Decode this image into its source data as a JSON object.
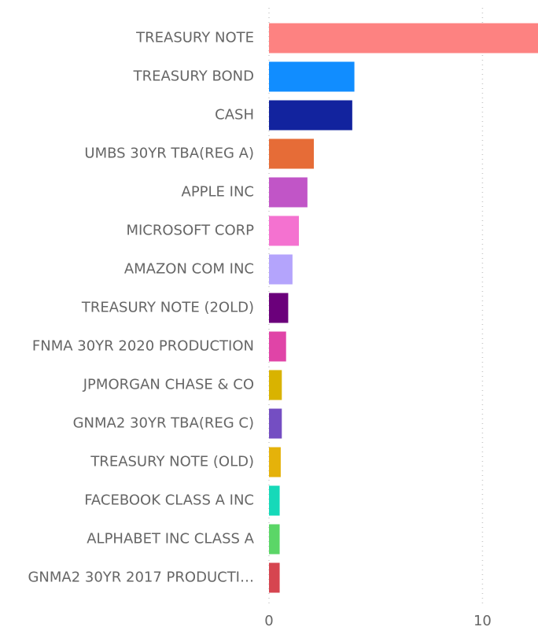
{
  "chart_data": {
    "type": "barh",
    "categories": [
      "TREASURY NOTE",
      "TREASURY BOND",
      "CASH",
      "UMBS 30YR TBA(REG A)",
      "APPLE INC",
      "MICROSOFT CORP",
      "AMAZON COM INC",
      "TREASURY NOTE (2OLD)",
      "FNMA 30YR 2020 PRODUCTION",
      "JPMORGAN CHASE & CO",
      "GNMA2 30YR TBA(REG C)",
      "TREASURY NOTE (OLD)",
      "FACEBOOK CLASS A INC",
      "ALPHABET INC CLASS A",
      "GNMA2 30YR 2017 PRODUCTI…"
    ],
    "values": [
      12.6,
      4.0,
      3.9,
      2.1,
      1.8,
      1.4,
      1.1,
      0.9,
      0.8,
      0.6,
      0.6,
      0.55,
      0.5,
      0.5,
      0.5
    ],
    "colors": [
      "#fd8281",
      "#118dff",
      "#12239e",
      "#e66c37",
      "#c155c7",
      "#f472d0",
      "#b4a4fc",
      "#6b007b",
      "#e044a7",
      "#d9b300",
      "#744ec2",
      "#e5b20a",
      "#16d9b9",
      "#5bd667",
      "#d64550"
    ],
    "xlim": [
      0,
      12.6
    ],
    "xticks": [
      0,
      10
    ],
    "grid": true
  }
}
